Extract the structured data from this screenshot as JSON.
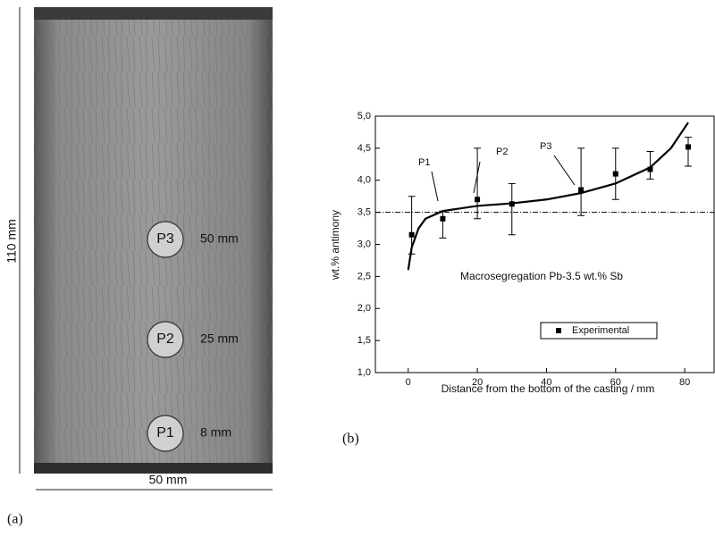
{
  "figure": {
    "panel_a": {
      "label": "(a)",
      "height_label": "110 mm",
      "width_label": "50 mm",
      "markers": [
        {
          "name": "P3",
          "depth": "50 mm"
        },
        {
          "name": "P2",
          "depth": "25 mm"
        },
        {
          "name": "P1",
          "depth": "8 mm"
        }
      ]
    },
    "panel_b_label": "(b)"
  },
  "chart_data": {
    "type": "scatter",
    "x_label": "Distance from the bottom of the casting / mm",
    "y_label": "wt.% antimony",
    "annotation": "Macrosegregation Pb-3.5 wt.% Sb",
    "point_labels": [
      "P1",
      "P2",
      "P3"
    ],
    "xlim": [
      -9.5,
      88.5
    ],
    "xticks": [
      0,
      20,
      40,
      60,
      80
    ],
    "ylim": [
      1,
      5
    ],
    "yticks": [
      {
        "value": 1,
        "label": "1,0"
      },
      {
        "value": 1.5,
        "label": "1,5"
      },
      {
        "value": 2,
        "label": "2,0"
      },
      {
        "value": 2.5,
        "label": "2,5"
      },
      {
        "value": 3,
        "label": "3,0"
      },
      {
        "value": 3.5,
        "label": "3,5"
      },
      {
        "value": 4,
        "label": "4,0"
      },
      {
        "value": 4.5,
        "label": "4,5"
      },
      {
        "value": 5,
        "label": "5,0"
      }
    ],
    "hline": 3.5,
    "series": [
      {
        "name": "Experimental",
        "color": "#000000",
        "x": [
          1,
          10,
          20,
          30,
          50,
          60,
          70,
          81
        ],
        "values": [
          3.15,
          3.4,
          3.7,
          3.63,
          3.85,
          4.1,
          4.17,
          4.52
        ],
        "err_plus": [
          0.6,
          0.12,
          0.8,
          0.32,
          0.65,
          0.4,
          0.28,
          0.15
        ],
        "err_minus": [
          0.3,
          0.3,
          0.3,
          0.48,
          0.4,
          0.4,
          0.15,
          0.3
        ]
      }
    ],
    "fit": {
      "color": "#000000",
      "x": [
        0,
        1,
        3,
        5,
        10,
        20,
        30,
        40,
        50,
        60,
        70,
        76,
        81
      ],
      "values": [
        2.6,
        2.95,
        3.25,
        3.4,
        3.52,
        3.6,
        3.64,
        3.7,
        3.8,
        3.95,
        4.2,
        4.5,
        4.9
      ]
    }
  }
}
